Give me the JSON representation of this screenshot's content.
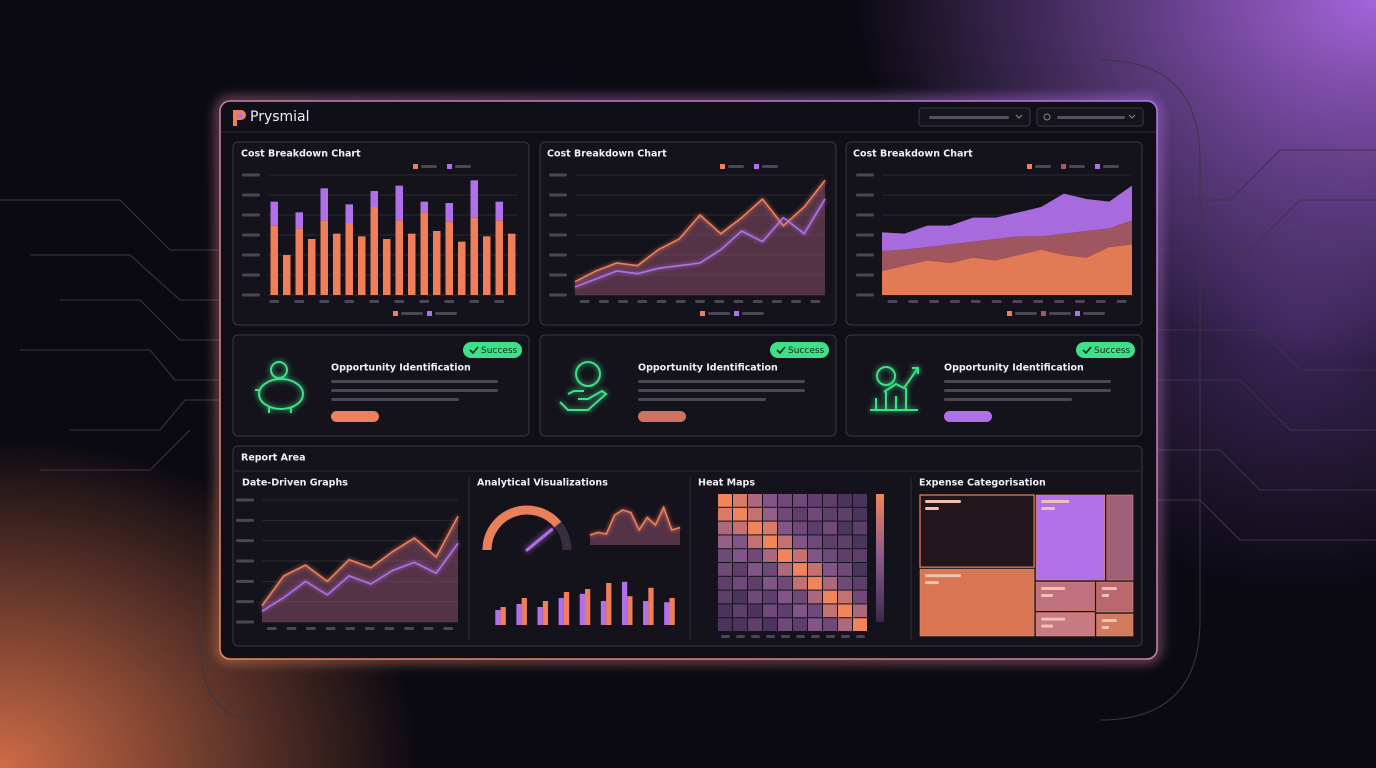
{
  "header": {
    "logo": "Prysmial"
  },
  "cards": [
    {
      "title": "Opportunity Identification",
      "status": "Success",
      "accent": "#ee7f5a"
    },
    {
      "title": "Opportunity Identification",
      "status": "Success",
      "accent": "#d07260"
    },
    {
      "title": "Opportunity Identification",
      "status": "Success",
      "accent": "#b070e8"
    }
  ],
  "report": {
    "title": "Report Area"
  },
  "chart_data": [
    {
      "type": "bar",
      "title": "Cost Breakdown Chart",
      "stacked": true,
      "grid": true,
      "categories": [
        null,
        null,
        null,
        null,
        null,
        null,
        null,
        null,
        null,
        null,
        null,
        null,
        null,
        null,
        null,
        null,
        null,
        null,
        null,
        null
      ],
      "series": [
        {
          "color": "#ee7f5a",
          "values": [
            52,
            30,
            50,
            42,
            56,
            46,
            54,
            44,
            66,
            42,
            56,
            46,
            62,
            48,
            55,
            40,
            58,
            44,
            56,
            46
          ]
        },
        {
          "color": "#b070e8",
          "values": [
            18,
            0,
            12,
            0,
            24,
            0,
            14,
            0,
            12,
            0,
            26,
            0,
            8,
            0,
            14,
            0,
            28,
            0,
            14,
            0
          ]
        }
      ],
      "ylim": [
        0,
        90
      ],
      "yticks": [
        0,
        15,
        30,
        45,
        60,
        75,
        90
      ]
    },
    {
      "type": "line",
      "title": "Cost Breakdown Chart",
      "area": true,
      "grid": true,
      "categories": [
        null,
        null,
        null,
        null,
        null,
        null,
        null,
        null,
        null,
        null,
        null,
        null,
        null
      ],
      "series": [
        {
          "color": "#ee7f5a",
          "values": [
            10,
            18,
            24,
            22,
            34,
            42,
            60,
            46,
            58,
            72,
            52,
            66,
            86
          ]
        },
        {
          "color": "#b070e8",
          "values": [
            6,
            12,
            18,
            16,
            20,
            22,
            24,
            34,
            48,
            40,
            58,
            46,
            72
          ]
        }
      ],
      "ylim": [
        0,
        90
      ],
      "yticks": [
        0,
        15,
        30,
        45,
        60,
        75,
        90
      ]
    },
    {
      "type": "area",
      "title": "Cost Breakdown Chart",
      "grid": true,
      "categories": [
        null,
        null,
        null,
        null,
        null,
        null,
        null,
        null,
        null,
        null,
        null,
        null
      ],
      "series": [
        {
          "color": "#ee7f5a",
          "values": [
            18,
            22,
            26,
            24,
            28,
            26,
            30,
            34,
            30,
            28,
            36,
            38
          ]
        },
        {
          "color": "#a85a62",
          "values": [
            15,
            12,
            10,
            14,
            12,
            16,
            14,
            10,
            16,
            20,
            14,
            18
          ]
        },
        {
          "color": "#b070e8",
          "values": [
            14,
            12,
            16,
            14,
            18,
            16,
            18,
            22,
            30,
            24,
            20,
            26
          ]
        }
      ],
      "ylim": [
        0,
        90
      ],
      "yticks": [
        0,
        15,
        30,
        45,
        60,
        75,
        90
      ]
    },
    {
      "type": "line",
      "title": "Date-Driven Graphs",
      "area": true,
      "grid": true,
      "categories": [
        null,
        null,
        null,
        null,
        null,
        null,
        null,
        null,
        null,
        null
      ],
      "series": [
        {
          "color": "#ee7f5a",
          "values": [
            12,
            34,
            42,
            30,
            46,
            40,
            52,
            62,
            48,
            78
          ]
        },
        {
          "color": "#b070e8",
          "values": [
            8,
            18,
            30,
            20,
            34,
            28,
            38,
            44,
            36,
            58
          ]
        }
      ],
      "ylim": [
        0,
        90
      ],
      "yticks": [
        0,
        15,
        30,
        45,
        60,
        75,
        90
      ]
    },
    {
      "type": "gauge",
      "title": "Analytical Visualizations",
      "value": 78,
      "lim": [
        0,
        100
      ],
      "color": "#e8805a",
      "needle_color": "#b070e8"
    },
    {
      "type": "line",
      "area": true,
      "categories": [
        null,
        null,
        null,
        null,
        null,
        null,
        null,
        null,
        null,
        null,
        null,
        null
      ],
      "series": [
        {
          "color": "#ee7f5a",
          "values": [
            20,
            25,
            22,
            60,
            70,
            65,
            30,
            55,
            40,
            75,
            30,
            35
          ]
        }
      ],
      "ylim": [
        0,
        100
      ]
    },
    {
      "type": "bar",
      "stacked": false,
      "categories": [
        null,
        null,
        null,
        null,
        null,
        null,
        null,
        null,
        null
      ],
      "series": [
        {
          "color": "#b070e8",
          "values": [
            25,
            35,
            30,
            45,
            52,
            40,
            72,
            40,
            38
          ]
        },
        {
          "color": "#ee7f5a",
          "values": [
            30,
            45,
            40,
            55,
            60,
            70,
            48,
            62,
            45
          ]
        }
      ],
      "ylim": [
        0,
        100
      ]
    },
    {
      "type": "heatmap",
      "title": "Heat Maps",
      "lim": [
        0,
        9
      ],
      "colors": [
        "#3a2a4e",
        "#8a5a8e",
        "#f0845a"
      ],
      "matrix": [
        [
          9,
          8,
          6,
          4,
          3,
          3,
          2,
          2,
          1,
          1
        ],
        [
          8,
          9,
          7,
          5,
          3,
          2,
          3,
          2,
          2,
          1
        ],
        [
          6,
          7,
          9,
          8,
          4,
          3,
          2,
          3,
          1,
          2
        ],
        [
          5,
          4,
          7,
          9,
          7,
          4,
          3,
          2,
          2,
          1
        ],
        [
          3,
          4,
          3,
          6,
          9,
          7,
          4,
          3,
          2,
          2
        ],
        [
          3,
          2,
          4,
          3,
          6,
          9,
          7,
          4,
          3,
          1
        ],
        [
          2,
          3,
          2,
          4,
          3,
          7,
          9,
          6,
          3,
          2
        ],
        [
          2,
          1,
          3,
          2,
          4,
          3,
          6,
          9,
          7,
          3
        ],
        [
          1,
          2,
          1,
          3,
          2,
          4,
          3,
          7,
          9,
          6
        ],
        [
          1,
          1,
          2,
          1,
          3,
          2,
          4,
          3,
          6,
          9
        ]
      ]
    },
    {
      "type": "treemap",
      "title": "Expense Categorisation",
      "values": [
        28,
        26,
        20,
        8,
        6,
        5,
        4,
        3
      ],
      "colors": [
        "#22161c",
        "#d87552",
        "#b070e8",
        "#a0607a",
        "#c07080",
        "#c87a82",
        "#b8686e",
        "#d07a60"
      ]
    }
  ]
}
